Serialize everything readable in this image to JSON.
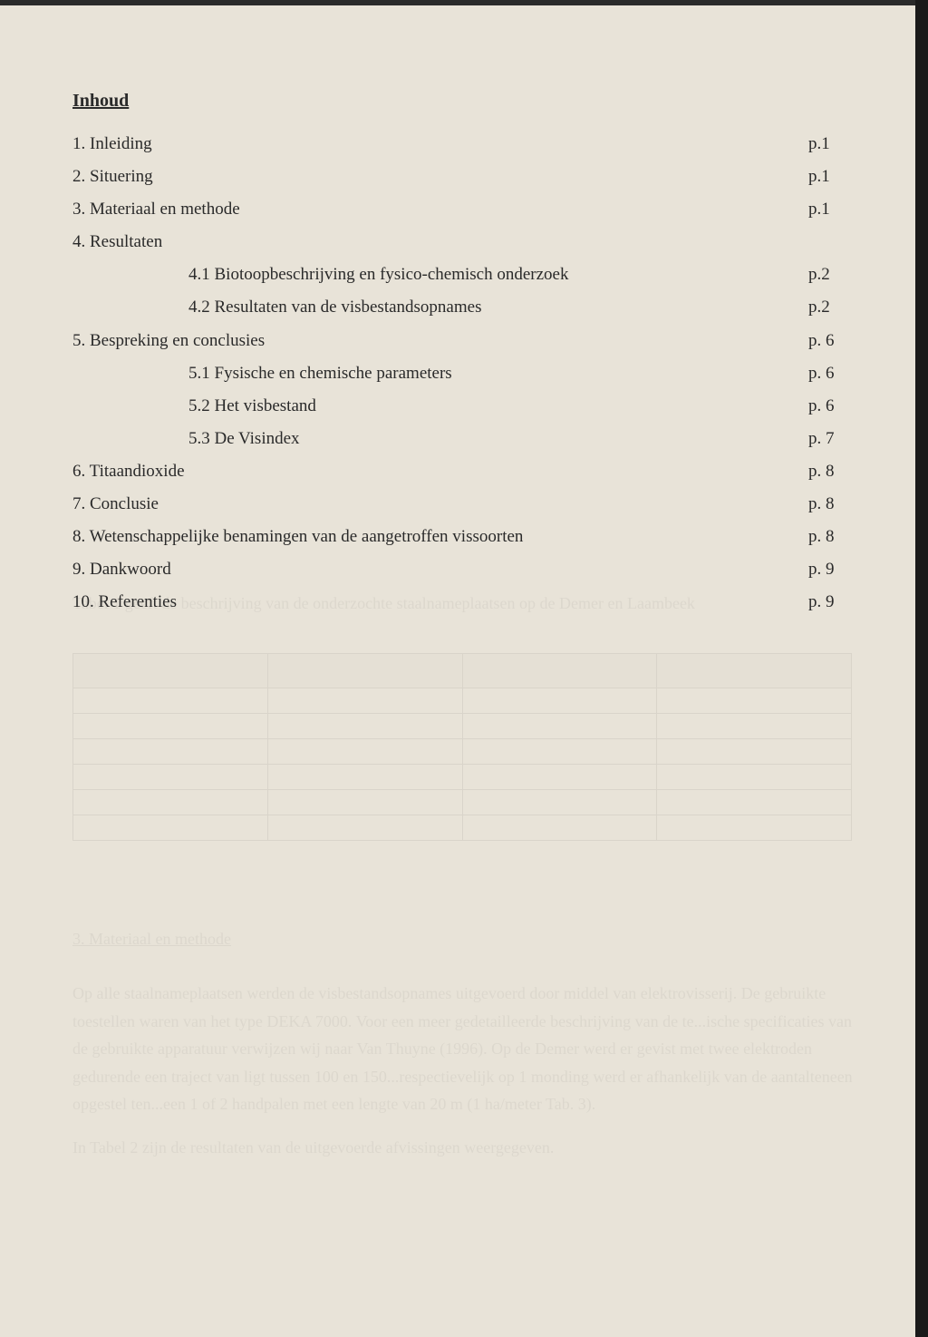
{
  "heading": "Inhoud",
  "entries": [
    {
      "label": "1. Inleiding",
      "page": "p.1",
      "indent": 0
    },
    {
      "label": "2. Situering",
      "page": "p.1",
      "indent": 0
    },
    {
      "label": "3. Materiaal en methode",
      "page": "p.1",
      "indent": 0
    },
    {
      "label": "4. Resultaten",
      "page": "",
      "indent": 0
    },
    {
      "label": "4.1 Biotoopbeschrijving en fysico-chemisch onderzoek",
      "page": "p.2",
      "indent": 1
    },
    {
      "label": "4.2 Resultaten van de visbestandsopnames",
      "page": "p.2",
      "indent": 1
    },
    {
      "label": "5. Bespreking en conclusies",
      "page": "p. 6",
      "indent": 0
    },
    {
      "label": "5.1 Fysische en chemische parameters",
      "page": "p. 6",
      "indent": 1
    },
    {
      "label": "5.2 Het visbestand",
      "page": "p. 6",
      "indent": 1
    },
    {
      "label": "5.3 De Visindex",
      "page": "p. 7",
      "indent": 1
    },
    {
      "label": "6. Titaandioxide",
      "page": "p. 8",
      "indent": 0
    },
    {
      "label": "7. Conclusie",
      "page": "p. 8",
      "indent": 0
    },
    {
      "label": "8. Wetenschappelijke benamingen van de aangetroffen vissoorten",
      "page": "p. 8",
      "indent": 0
    },
    {
      "label": "9. Dankwoord",
      "page": "p. 9",
      "indent": 0
    },
    {
      "label": "10. Referenties",
      "page": "p. 9",
      "indent": 0
    }
  ]
}
